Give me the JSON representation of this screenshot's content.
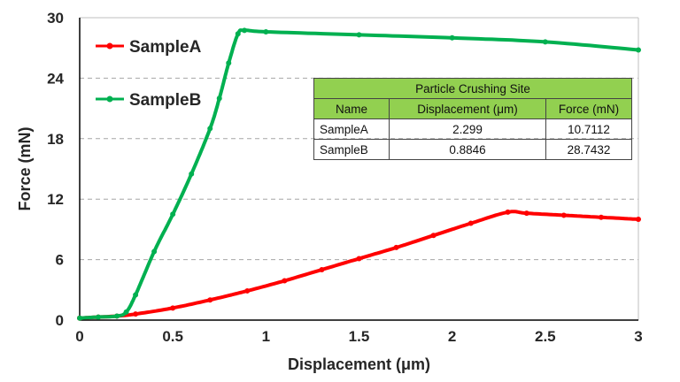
{
  "chart_data": {
    "type": "line",
    "title": "",
    "xlabel": "Displacement (μm)",
    "ylabel": "Force (mN)",
    "xlim": [
      0,
      3
    ],
    "ylim": [
      0,
      30
    ],
    "xticks": [
      "0",
      "0.5",
      "1",
      "1.5",
      "2",
      "2.5",
      "3"
    ],
    "yticks": [
      "0",
      "6",
      "12",
      "18",
      "24",
      "30"
    ],
    "grid": "horizontal dashed",
    "legend_position": "top-left",
    "series": [
      {
        "name": "SampleA",
        "color": "#ff0000",
        "x": [
          0,
          0.1,
          0.2,
          0.3,
          0.5,
          0.7,
          0.9,
          1.1,
          1.3,
          1.5,
          1.7,
          1.9,
          2.1,
          2.299,
          2.4,
          2.6,
          2.8,
          3.0
        ],
        "y": [
          0.2,
          0.3,
          0.4,
          0.6,
          1.2,
          2.0,
          2.9,
          3.9,
          5.0,
          6.1,
          7.2,
          8.4,
          9.6,
          10.7112,
          10.6,
          10.4,
          10.2,
          10.0
        ]
      },
      {
        "name": "SampleB",
        "color": "#00b050",
        "x": [
          0,
          0.1,
          0.2,
          0.25,
          0.3,
          0.4,
          0.5,
          0.6,
          0.7,
          0.75,
          0.8,
          0.85,
          0.8846,
          1.0,
          1.5,
          2.0,
          2.5,
          3.0
        ],
        "y": [
          0.2,
          0.3,
          0.4,
          0.8,
          2.5,
          6.8,
          10.5,
          14.5,
          19.0,
          22.0,
          25.5,
          28.4,
          28.7432,
          28.6,
          28.3,
          28.0,
          27.6,
          26.8
        ]
      }
    ]
  },
  "table": {
    "title": "Particle Crushing Site",
    "headers": [
      "Name",
      "Displacement (μm)",
      "Force (mN)"
    ],
    "rows": [
      [
        "SampleA",
        "2.299",
        "10.7112"
      ],
      [
        "SampleB",
        "0.8846",
        "28.7432"
      ]
    ]
  }
}
